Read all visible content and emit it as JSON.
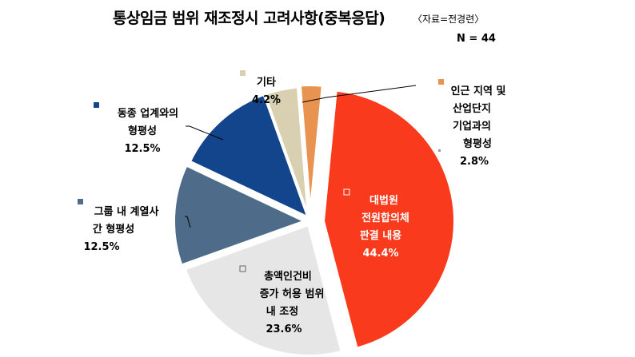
{
  "title": "통상임금 범위 재조정시 고려사항(중복응답)",
  "source": "〈자료=전경련〉",
  "sample": "N = 44",
  "chart_data": {
    "type": "pie",
    "title": "통상임금 범위 재조정시 고려사항(중복응답)",
    "slices": [
      {
        "label": "대법원 전원합의체 판결 내용",
        "lines": [
          "대법원",
          "전원합의체",
          "판결 내용"
        ],
        "value": 44.4,
        "value_text": "44.4%",
        "color": "#fa3a1c",
        "exploded": true
      },
      {
        "label": "총액인건비 증가 허용 범위 내 조정",
        "lines": [
          "총액인건비",
          "증가 허용 범위",
          "내 조정"
        ],
        "value": 23.6,
        "value_text": "23.6%",
        "color": "#e6e6e6"
      },
      {
        "label": "그룹 내 계열사 간 형평성",
        "lines": [
          "그룹 내 계열사",
          "간 형평성"
        ],
        "value": 12.5,
        "value_text": "12.5%",
        "color": "#4f6b8a"
      },
      {
        "label": "동종 업계와의 형평성",
        "lines": [
          "동종 업계와의",
          "형평성"
        ],
        "value": 12.5,
        "value_text": "12.5%",
        "color": "#12458c"
      },
      {
        "label": "기타",
        "lines": [
          "기타"
        ],
        "value": 4.2,
        "value_text": "4.2%",
        "color": "#d8d0b0"
      },
      {
        "label": "인근 지역 및 산업단지 기업과의 형평성",
        "lines": [
          "인근 지역 및",
          "산업단지",
          "기업과의",
          "형평성"
        ],
        "value": 2.8,
        "value_text": "2.8%",
        "color": "#e89450"
      }
    ]
  }
}
